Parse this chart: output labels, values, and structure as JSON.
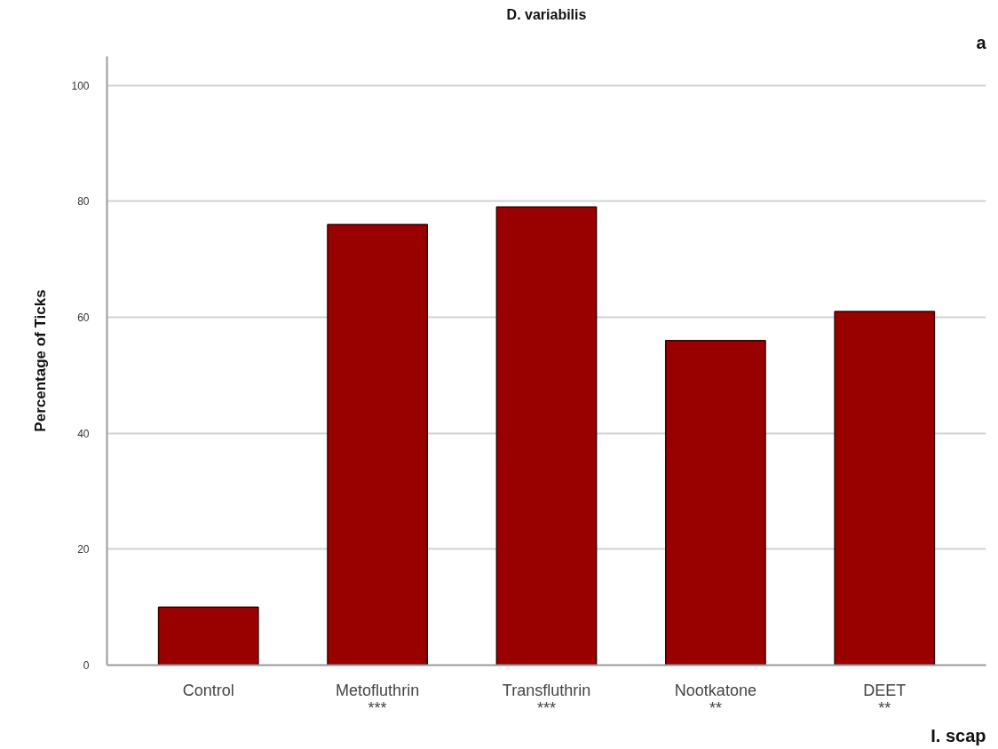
{
  "chart_data": {
    "type": "bar",
    "title": "D. variabilis",
    "ylabel": "Percentage of Ticks",
    "categories": [
      "Control",
      "Metofluthrin\n***",
      "Transfluthrin\n***",
      "Nootkatone\n**",
      "DEET\n**"
    ],
    "values": [
      10,
      76,
      79,
      56,
      61
    ],
    "color": "#990000",
    "ylim": [
      0,
      105
    ],
    "yticks": [
      0,
      20,
      40,
      60,
      80,
      100
    ],
    "grid": "y",
    "annotations": [
      "a",
      "I. scap"
    ]
  }
}
